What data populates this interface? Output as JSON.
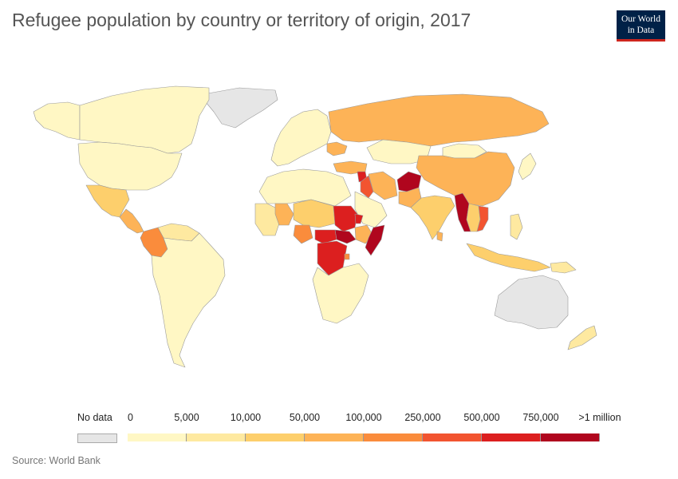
{
  "title": "Refugee population by country or territory of origin, 2017",
  "logo": {
    "line1": "Our World",
    "line2": "in Data",
    "bg": "#002147",
    "accent": "#ce261e"
  },
  "source": "Source: World Bank",
  "legend": {
    "nodata_label": "No data",
    "nodata_color": "#e6e6e6",
    "bins": [
      {
        "from": "0",
        "to": "5,000",
        "color": "#fff7c4"
      },
      {
        "from": "5,000",
        "to": "10,000",
        "color": "#fee9a0"
      },
      {
        "from": "10,000",
        "to": "50,000",
        "color": "#fdcf6c"
      },
      {
        "from": "50,000",
        "to": "100,000",
        "color": "#fdb357"
      },
      {
        "from": "100,000",
        "to": "250,000",
        "color": "#fa8c3c"
      },
      {
        "from": "250,000",
        "to": "500,000",
        "color": "#f25430"
      },
      {
        "from": "500,000",
        "to": "750,000",
        "color": "#dc1f1f"
      },
      {
        "from": "750,000",
        "to": ">1 million",
        "color": "#b0061e"
      }
    ],
    "tick_labels": [
      "0",
      "5,000",
      "10,000",
      "50,000",
      "100,000",
      "250,000",
      "500,000",
      "750,000",
      ">1 million"
    ]
  },
  "regions": [
    {
      "id": "canada",
      "bin": 0
    },
    {
      "id": "usa",
      "bin": 0
    },
    {
      "id": "alaska",
      "bin": 0
    },
    {
      "id": "greenland",
      "bin": "nodata"
    },
    {
      "id": "mexico",
      "bin": 2
    },
    {
      "id": "central-america",
      "bin": 3
    },
    {
      "id": "colombia",
      "bin": 4
    },
    {
      "id": "venezuela",
      "bin": 1
    },
    {
      "id": "south-america",
      "bin": 0
    },
    {
      "id": "europe",
      "bin": 0
    },
    {
      "id": "ukraine",
      "bin": 3
    },
    {
      "id": "turkey",
      "bin": 3
    },
    {
      "id": "russia",
      "bin": 3
    },
    {
      "id": "kazakhstan",
      "bin": 0
    },
    {
      "id": "mongolia",
      "bin": 0
    },
    {
      "id": "china",
      "bin": 3
    },
    {
      "id": "japan",
      "bin": 0
    },
    {
      "id": "iran",
      "bin": 3
    },
    {
      "id": "syria",
      "bin": 6
    },
    {
      "id": "iraq",
      "bin": 5
    },
    {
      "id": "saudi-arabia",
      "bin": 0
    },
    {
      "id": "afghanistan",
      "bin": 7
    },
    {
      "id": "pakistan",
      "bin": 3
    },
    {
      "id": "india",
      "bin": 2
    },
    {
      "id": "sri-lanka",
      "bin": 3
    },
    {
      "id": "myanmar",
      "bin": 7
    },
    {
      "id": "vietnam",
      "bin": 5
    },
    {
      "id": "indochina",
      "bin": 2
    },
    {
      "id": "indonesia",
      "bin": 2
    },
    {
      "id": "philippines",
      "bin": 1
    },
    {
      "id": "papua-new-guinea",
      "bin": 1
    },
    {
      "id": "australia",
      "bin": "nodata"
    },
    {
      "id": "new-zealand",
      "bin": 1
    },
    {
      "id": "north-africa",
      "bin": 0
    },
    {
      "id": "mali",
      "bin": 3
    },
    {
      "id": "niger-chad",
      "bin": 2
    },
    {
      "id": "nigeria",
      "bin": 4
    },
    {
      "id": "sudan",
      "bin": 6
    },
    {
      "id": "south-sudan",
      "bin": 7
    },
    {
      "id": "car",
      "bin": 6
    },
    {
      "id": "dr-congo",
      "bin": 6
    },
    {
      "id": "eritrea",
      "bin": 6
    },
    {
      "id": "ethiopia",
      "bin": 3
    },
    {
      "id": "somalia",
      "bin": 7
    },
    {
      "id": "southern-africa",
      "bin": 0
    },
    {
      "id": "burundi",
      "bin": 4
    },
    {
      "id": "west-africa",
      "bin": 1
    }
  ]
}
